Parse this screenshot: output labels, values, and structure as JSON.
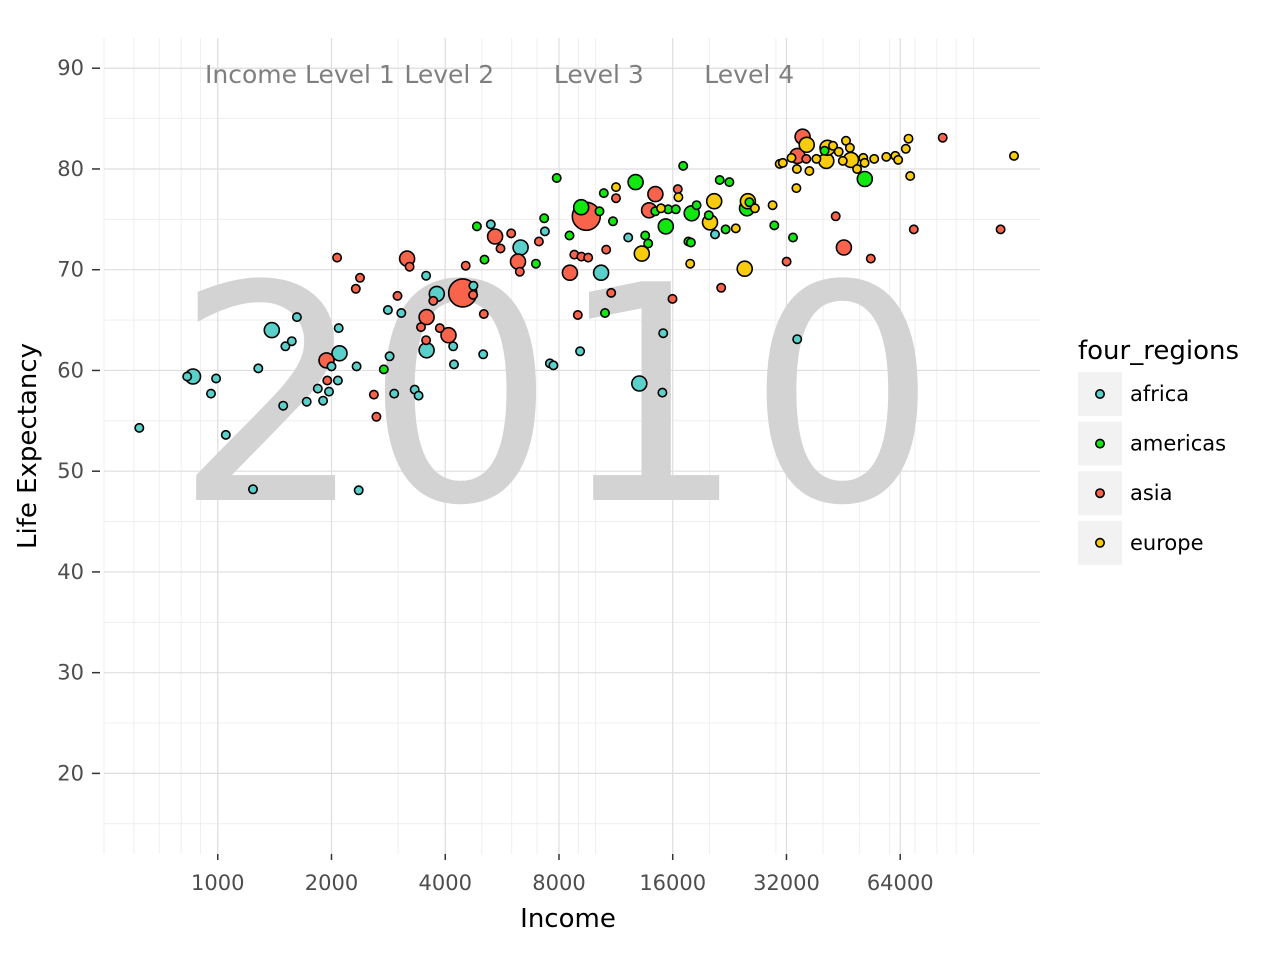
{
  "chart_data": {
    "type": "scatter",
    "year": "2010",
    "xlabel": "Income",
    "ylabel": "Life Expectancy",
    "x_scale": "log2",
    "xlim": [
      500,
      150000
    ],
    "ylim": [
      12,
      93
    ],
    "x_ticks": [
      1000,
      2000,
      4000,
      8000,
      16000,
      32000,
      64000
    ],
    "y_ticks": [
      20,
      30,
      40,
      50,
      60,
      70,
      80,
      90
    ],
    "grid": true,
    "legend": {
      "title": "four_regions",
      "position": "right"
    },
    "income_levels": [
      {
        "label": "Income Level 1",
        "x": 1650
      },
      {
        "label": "Level 2",
        "x": 4100
      },
      {
        "label": "Level 3",
        "x": 10200
      },
      {
        "label": "Level 4",
        "x": 25500
      }
    ],
    "series": [
      {
        "name": "africa",
        "color": "#5BCFC9",
        "points": [
          [
            620,
            54.3,
            1
          ],
          [
            830,
            59.4,
            1
          ],
          [
            860,
            59.4,
            2
          ],
          [
            960,
            57.7,
            1
          ],
          [
            990,
            59.2,
            1
          ],
          [
            1050,
            53.6,
            1
          ],
          [
            1240,
            48.2,
            1
          ],
          [
            1280,
            60.2,
            1
          ],
          [
            1390,
            64.0,
            2
          ],
          [
            1490,
            56.5,
            1
          ],
          [
            1510,
            62.4,
            1
          ],
          [
            1570,
            62.9,
            1
          ],
          [
            1620,
            65.3,
            1
          ],
          [
            1720,
            56.9,
            1
          ],
          [
            1840,
            58.2,
            1
          ],
          [
            1900,
            57.0,
            1
          ],
          [
            1970,
            57.9,
            1
          ],
          [
            2000,
            60.4,
            1
          ],
          [
            2080,
            59.0,
            1
          ],
          [
            2100,
            61.7,
            2
          ],
          [
            2090,
            64.2,
            1
          ],
          [
            2330,
            60.4,
            1
          ],
          [
            2360,
            48.1,
            1
          ],
          [
            2820,
            66.0,
            1
          ],
          [
            2850,
            61.4,
            1
          ],
          [
            2930,
            57.7,
            1
          ],
          [
            3060,
            65.7,
            1
          ],
          [
            3320,
            58.1,
            1
          ],
          [
            3400,
            57.5,
            1
          ],
          [
            3560,
            69.4,
            1
          ],
          [
            3570,
            62.0,
            2
          ],
          [
            3800,
            67.6,
            2
          ],
          [
            4200,
            62.4,
            1
          ],
          [
            4220,
            60.6,
            1
          ],
          [
            4750,
            68.4,
            1
          ],
          [
            5040,
            61.6,
            1
          ],
          [
            5280,
            74.5,
            1
          ],
          [
            6330,
            72.2,
            2
          ],
          [
            7340,
            73.8,
            1
          ],
          [
            7570,
            60.7,
            1
          ],
          [
            7730,
            60.5,
            1
          ],
          [
            9100,
            61.9,
            1
          ],
          [
            10340,
            69.7,
            2
          ],
          [
            13050,
            58.7,
            2
          ],
          [
            15100,
            63.7,
            1
          ],
          [
            15020,
            57.8,
            1
          ],
          [
            12200,
            73.2,
            1
          ],
          [
            20700,
            73.5,
            1
          ],
          [
            34150,
            63.1,
            1
          ]
        ]
      },
      {
        "name": "americas",
        "color": "#10E810",
        "points": [
          [
            2750,
            60.1,
            1
          ],
          [
            4850,
            74.3,
            1
          ],
          [
            5080,
            71.0,
            1
          ],
          [
            6950,
            70.6,
            1
          ],
          [
            7310,
            75.1,
            1
          ],
          [
            7890,
            79.1,
            1
          ],
          [
            8530,
            73.4,
            1
          ],
          [
            9160,
            76.2,
            2
          ],
          [
            10240,
            75.8,
            1
          ],
          [
            10510,
            77.6,
            1
          ],
          [
            10590,
            65.7,
            1
          ],
          [
            11120,
            74.8,
            1
          ],
          [
            12760,
            78.7,
            2
          ],
          [
            13530,
            73.4,
            1
          ],
          [
            13780,
            72.6,
            1
          ],
          [
            14390,
            75.8,
            1
          ],
          [
            15340,
            74.3,
            2
          ],
          [
            15560,
            76.0,
            1
          ],
          [
            16300,
            76.0,
            1
          ],
          [
            17050,
            80.3,
            1
          ],
          [
            17600,
            72.8,
            1
          ],
          [
            17870,
            72.7,
            1
          ],
          [
            17960,
            75.6,
            2
          ],
          [
            18510,
            76.4,
            1
          ],
          [
            19930,
            75.4,
            1
          ],
          [
            21300,
            78.9,
            1
          ],
          [
            22080,
            74.0,
            1
          ],
          [
            22600,
            78.7,
            1
          ],
          [
            25160,
            76.1,
            2
          ],
          [
            25530,
            76.7,
            1
          ],
          [
            29710,
            74.4,
            1
          ],
          [
            33290,
            73.2,
            1
          ],
          [
            40360,
            81.8,
            1
          ],
          [
            51560,
            79.0,
            2
          ]
        ]
      },
      {
        "name": "asia",
        "color": "#F8634C",
        "points": [
          [
            1940,
            61.0,
            2
          ],
          [
            1950,
            59.0,
            1
          ],
          [
            2070,
            71.2,
            1
          ],
          [
            2320,
            68.1,
            1
          ],
          [
            2380,
            69.2,
            1
          ],
          [
            2590,
            57.6,
            1
          ],
          [
            2630,
            55.4,
            1
          ],
          [
            2990,
            67.4,
            1
          ],
          [
            3170,
            71.1,
            2
          ],
          [
            3220,
            70.3,
            1
          ],
          [
            3450,
            64.3,
            1
          ],
          [
            3570,
            65.3,
            2
          ],
          [
            3560,
            63.0,
            1
          ],
          [
            3720,
            66.9,
            1
          ],
          [
            3870,
            64.2,
            1
          ],
          [
            4080,
            63.5,
            2
          ],
          [
            4450,
            67.7,
            3
          ],
          [
            4530,
            70.4,
            1
          ],
          [
            4740,
            67.5,
            1
          ],
          [
            5060,
            65.6,
            1
          ],
          [
            5420,
            73.3,
            2
          ],
          [
            5600,
            72.1,
            1
          ],
          [
            5980,
            73.6,
            1
          ],
          [
            6230,
            70.8,
            2
          ],
          [
            6300,
            69.8,
            1
          ],
          [
            7080,
            72.8,
            1
          ],
          [
            8550,
            69.7,
            2
          ],
          [
            8780,
            71.5,
            1
          ],
          [
            8970,
            65.5,
            1
          ],
          [
            9170,
            71.3,
            1
          ],
          [
            9450,
            75.3,
            3
          ],
          [
            9560,
            71.2,
            1
          ],
          [
            10670,
            72.0,
            1
          ],
          [
            11000,
            67.7,
            1
          ],
          [
            11320,
            77.1,
            1
          ],
          [
            13850,
            75.9,
            2
          ],
          [
            14400,
            77.5,
            2
          ],
          [
            15980,
            67.1,
            1
          ],
          [
            16500,
            78.0,
            1
          ],
          [
            21500,
            68.2,
            1
          ],
          [
            32020,
            70.8,
            1
          ],
          [
            34200,
            81.3,
            2
          ],
          [
            35300,
            83.2,
            2
          ],
          [
            36100,
            81.0,
            1
          ],
          [
            43200,
            75.3,
            1
          ],
          [
            45400,
            72.2,
            2
          ],
          [
            53500,
            71.1,
            1
          ],
          [
            69500,
            74.0,
            1
          ],
          [
            82900,
            83.1,
            1
          ],
          [
            118000,
            74.0,
            1
          ]
        ]
      },
      {
        "name": "europe",
        "color": "#F8CC0A",
        "points": [
          [
            11320,
            78.2,
            1
          ],
          [
            13250,
            71.6,
            2
          ],
          [
            14900,
            76.1,
            1
          ],
          [
            16560,
            77.2,
            1
          ],
          [
            17800,
            70.6,
            1
          ],
          [
            20080,
            74.7,
            2
          ],
          [
            20600,
            76.8,
            2
          ],
          [
            23500,
            74.1,
            1
          ],
          [
            24800,
            70.1,
            2
          ],
          [
            25300,
            76.8,
            2
          ],
          [
            26400,
            76.1,
            1
          ],
          [
            29400,
            76.4,
            1
          ],
          [
            30700,
            80.5,
            1
          ],
          [
            31300,
            80.6,
            1
          ],
          [
            33000,
            81.1,
            1
          ],
          [
            34000,
            78.1,
            1
          ],
          [
            34100,
            80.0,
            1
          ],
          [
            36200,
            82.4,
            2
          ],
          [
            36800,
            79.8,
            1
          ],
          [
            38400,
            81.0,
            1
          ],
          [
            40800,
            80.8,
            2
          ],
          [
            41100,
            82.1,
            2
          ],
          [
            42500,
            82.3,
            1
          ],
          [
            44000,
            81.7,
            1
          ],
          [
            45100,
            80.8,
            1
          ],
          [
            46000,
            82.8,
            1
          ],
          [
            47100,
            82.1,
            1
          ],
          [
            47400,
            80.9,
            2
          ],
          [
            49200,
            80.0,
            1
          ],
          [
            51100,
            81.1,
            1
          ],
          [
            51500,
            80.6,
            1
          ],
          [
            54600,
            81.0,
            1
          ],
          [
            58800,
            81.2,
            1
          ],
          [
            62100,
            81.3,
            1
          ],
          [
            63200,
            80.9,
            1
          ],
          [
            66200,
            82.0,
            1
          ],
          [
            67300,
            83.0,
            1
          ],
          [
            68000,
            79.3,
            1
          ],
          [
            128000,
            81.3,
            1
          ]
        ]
      }
    ]
  }
}
